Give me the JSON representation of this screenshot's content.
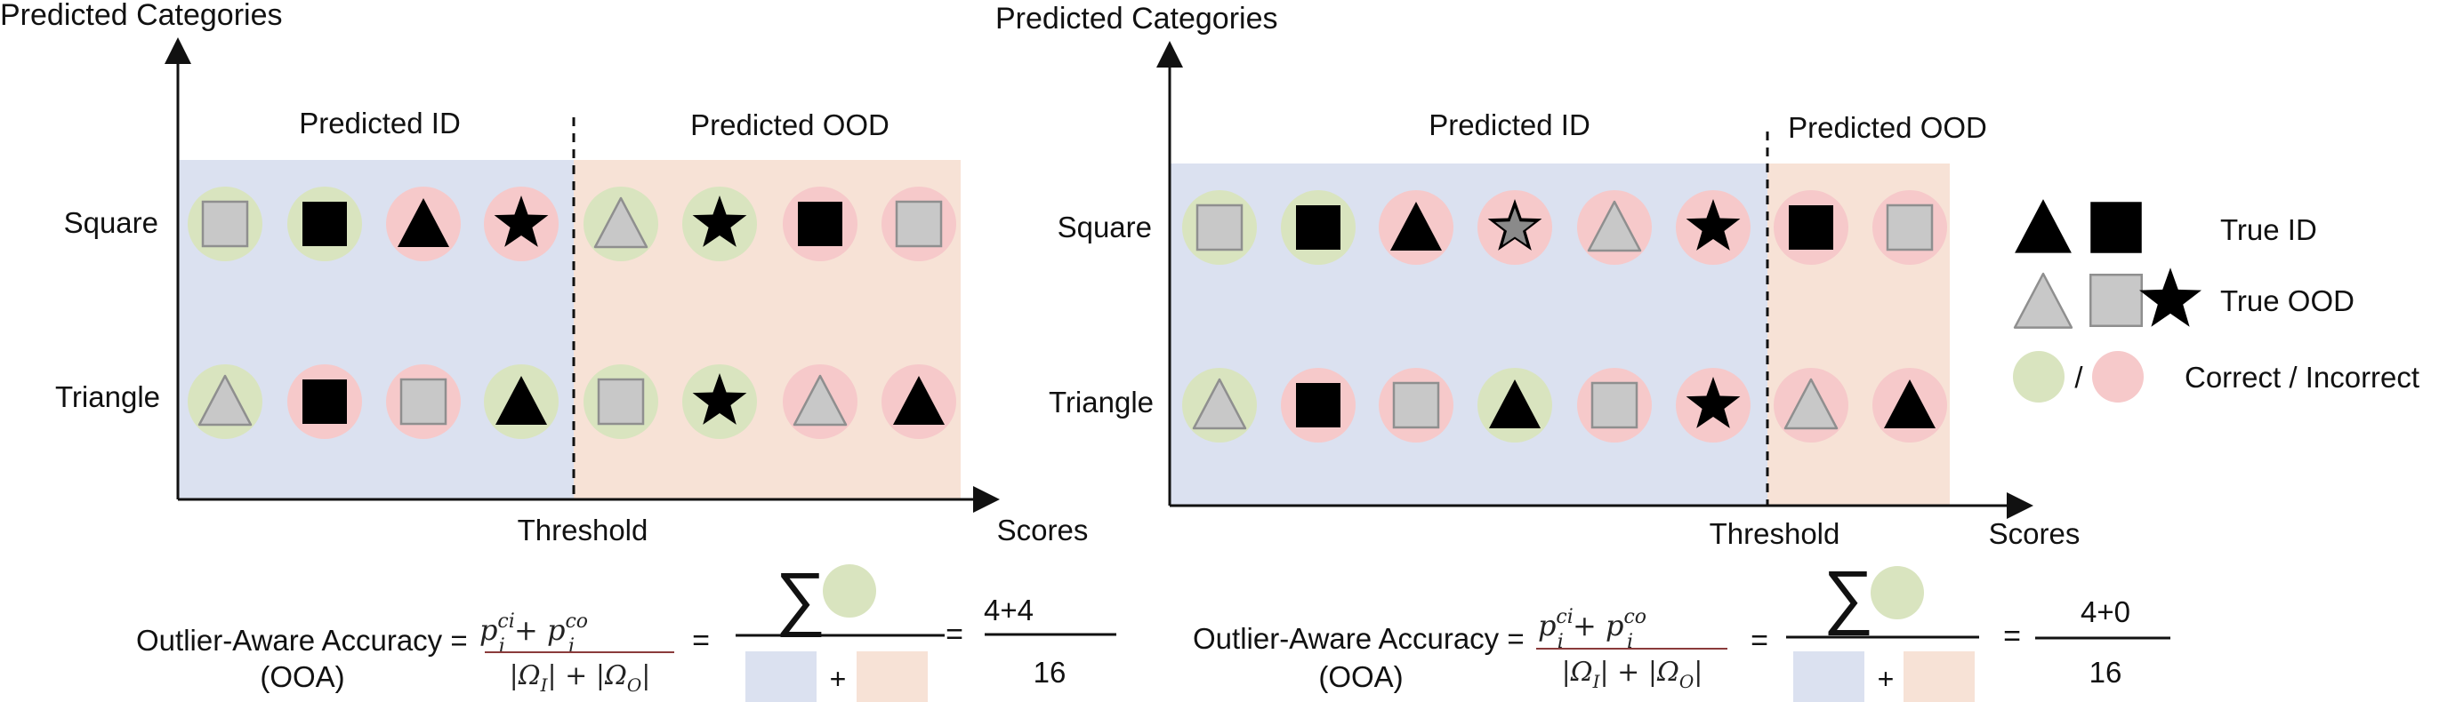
{
  "colors": {
    "id_region": "#dbe1f0",
    "ood_region": "#f7e2d6",
    "correct": "#d9e4bf",
    "incorrect": "#f6c9ca",
    "gray_shape": "#c8c8c8",
    "black_shape": "#000000"
  },
  "panels": [
    {
      "y_axis_title": "Predicted Categories",
      "x_axis_title": "Scores",
      "threshold_label": "Threshold",
      "region_id_label": "Predicted ID",
      "region_ood_label": "Predicted OOD",
      "row_labels": [
        "Square",
        "Triangle"
      ],
      "rows": [
        [
          {
            "shape": "square",
            "fill": "gray",
            "result": "correct"
          },
          {
            "shape": "square",
            "fill": "black",
            "result": "correct"
          },
          {
            "shape": "triangle",
            "fill": "black",
            "result": "incorrect"
          },
          {
            "shape": "star",
            "fill": "black",
            "result": "incorrect"
          },
          {
            "shape": "triangle",
            "fill": "gray",
            "result": "correct"
          },
          {
            "shape": "star",
            "fill": "black",
            "result": "correct"
          },
          {
            "shape": "square",
            "fill": "black",
            "result": "incorrect"
          },
          {
            "shape": "square",
            "fill": "gray",
            "result": "incorrect"
          }
        ],
        [
          {
            "shape": "triangle",
            "fill": "gray",
            "result": "correct"
          },
          {
            "shape": "square",
            "fill": "black",
            "result": "incorrect"
          },
          {
            "shape": "square",
            "fill": "gray",
            "result": "incorrect"
          },
          {
            "shape": "triangle",
            "fill": "black",
            "result": "correct"
          },
          {
            "shape": "square",
            "fill": "gray",
            "result": "correct"
          },
          {
            "shape": "star",
            "fill": "black",
            "result": "correct"
          },
          {
            "shape": "triangle",
            "fill": "gray",
            "result": "incorrect"
          },
          {
            "shape": "triangle",
            "fill": "black",
            "result": "incorrect"
          }
        ]
      ],
      "formula": {
        "label_line1": "Outlier-Aware Accuracy =",
        "label_line2": "(OOA)",
        "equals": "=",
        "sum_symbol": "∑",
        "plus": "+",
        "result_numerator": "4+4",
        "result_denominator": "16"
      }
    },
    {
      "y_axis_title": "Predicted Categories",
      "x_axis_title": "Scores",
      "threshold_label": "Threshold",
      "region_id_label": "Predicted ID",
      "region_ood_label": "Predicted OOD",
      "row_labels": [
        "Square",
        "Triangle"
      ],
      "rows": [
        [
          {
            "shape": "square",
            "fill": "gray",
            "result": "correct"
          },
          {
            "shape": "square",
            "fill": "black",
            "result": "correct"
          },
          {
            "shape": "triangle",
            "fill": "black",
            "result": "incorrect"
          },
          {
            "shape": "star",
            "fill": "graystar",
            "result": "incorrect"
          },
          {
            "shape": "triangle",
            "fill": "gray",
            "result": "incorrect"
          },
          {
            "shape": "star",
            "fill": "black",
            "result": "incorrect"
          },
          {
            "shape": "square",
            "fill": "black",
            "result": "incorrect"
          },
          {
            "shape": "square",
            "fill": "gray",
            "result": "incorrect"
          }
        ],
        [
          {
            "shape": "triangle",
            "fill": "gray",
            "result": "correct"
          },
          {
            "shape": "square",
            "fill": "black",
            "result": "incorrect"
          },
          {
            "shape": "square",
            "fill": "gray",
            "result": "incorrect"
          },
          {
            "shape": "triangle",
            "fill": "black",
            "result": "correct"
          },
          {
            "shape": "square",
            "fill": "gray",
            "result": "incorrect"
          },
          {
            "shape": "star",
            "fill": "black",
            "result": "incorrect"
          },
          {
            "shape": "triangle",
            "fill": "gray",
            "result": "incorrect"
          },
          {
            "shape": "triangle",
            "fill": "black",
            "result": "incorrect"
          }
        ]
      ],
      "formula": {
        "label_line1": "Outlier-Aware Accuracy =",
        "label_line2": "(OOA)",
        "equals": "=",
        "sum_symbol": "∑",
        "plus": "+",
        "result_numerator": "4+0",
        "result_denominator": "16"
      }
    }
  ],
  "legend": {
    "true_id_label": "True ID",
    "true_ood_label": "True OOD",
    "slash": "/",
    "correct_incorrect_label": "Correct / Incorrect"
  }
}
